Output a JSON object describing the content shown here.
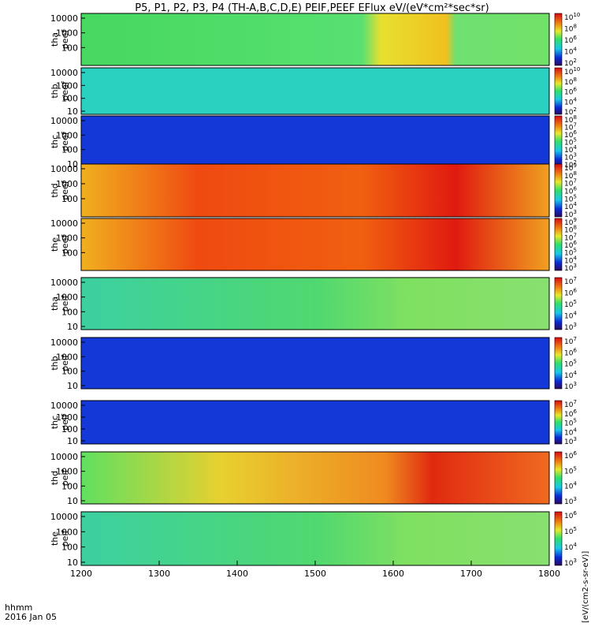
{
  "chart_data": {
    "type": "heatmap",
    "title": "P5, P1, P2, P3, P4 (TH-A,B,C,D,E) PEIF,PEEF EFlux eV/(eV*cm²*sec*sr)",
    "x_axis": {
      "ticks": [
        "1200",
        "1300",
        "1400",
        "1500",
        "1600",
        "1700",
        "1800"
      ],
      "xlim": [
        1200,
        1800
      ],
      "label_line1": "hhmm",
      "label_line2": "2016 Jan 05"
    },
    "y_scale": "log",
    "ytick_labels_a": [
      "10000",
      "1000",
      "100"
    ],
    "ytick_labels_b": [
      "10000",
      "1000",
      "100",
      "10"
    ],
    "colorbar_unit_label": "eV/(cm²-s-sr-eV)",
    "colorbar_vertical_label": "[eV/(cm2-s-sr-eV)]",
    "panels": [
      {
        "probe": "tha",
        "product": "peef",
        "ytick_set": "a",
        "colorbar_exponents": [
          "10",
          "8",
          "6",
          "4",
          "2"
        ]
      },
      {
        "probe": "thb",
        "product": "peef",
        "ytick_set": "b",
        "colorbar_exponents": [
          "10",
          "8",
          "6",
          "4",
          "2"
        ]
      },
      {
        "probe": "thc",
        "product": "peef",
        "ytick_set": "b",
        "colorbar_exponents": [
          "8",
          "7",
          "6",
          "5",
          "4",
          "3",
          "2"
        ]
      },
      {
        "probe": "thd",
        "product": "peef",
        "ytick_set": "a",
        "colorbar_exponents": [
          "9",
          "8",
          "7",
          "6",
          "5",
          "4",
          "3"
        ]
      },
      {
        "probe": "the",
        "product": "peef",
        "ytick_set": "a",
        "colorbar_exponents": [
          "9",
          "8",
          "7",
          "6",
          "5",
          "4",
          "3"
        ]
      },
      {
        "probe": "tha",
        "product": "peif",
        "ytick_set": "b",
        "colorbar_exponents": [
          "7",
          "6",
          "5",
          "4",
          "3"
        ]
      },
      {
        "probe": "thb",
        "product": "peif",
        "ytick_set": "b",
        "colorbar_exponents": [
          "7",
          "6",
          "5",
          "4",
          "3"
        ]
      },
      {
        "probe": "thc",
        "product": "peif",
        "ytick_set": "b",
        "colorbar_exponents": [
          "7",
          "6",
          "5",
          "4",
          "3"
        ]
      },
      {
        "probe": "thd",
        "product": "peif",
        "ytick_set": "b",
        "colorbar_exponents": [
          "6",
          "5",
          "4",
          "3"
        ]
      },
      {
        "probe": "the",
        "product": "peif",
        "ytick_set": "b",
        "colorbar_exponents": [
          "6",
          "5",
          "4",
          "3"
        ]
      }
    ]
  }
}
